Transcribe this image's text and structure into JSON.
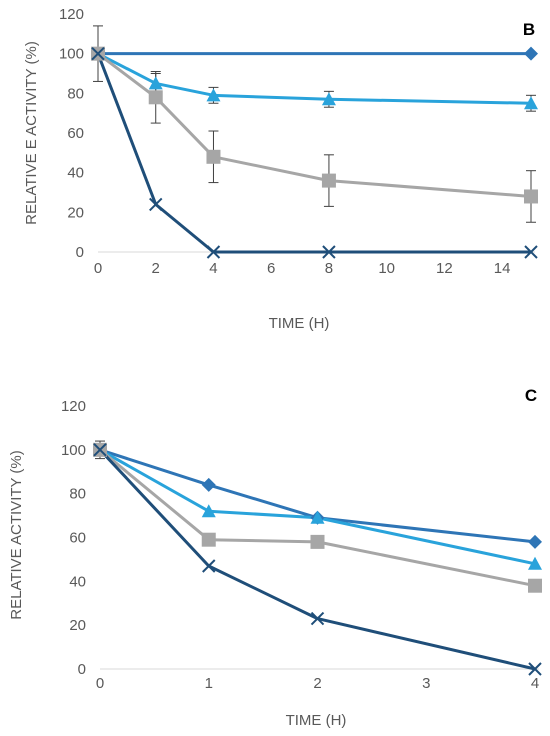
{
  "chart_data": [
    {
      "type": "line",
      "panel_label": "B",
      "xlabel": "TIME (H)",
      "ylabel": "RELATIVE E ACTIVITY (%)",
      "xlim": [
        0,
        15
      ],
      "ylim": [
        0,
        120
      ],
      "x_ticks": [
        0,
        2,
        4,
        6,
        8,
        10,
        12,
        14
      ],
      "y_ticks": [
        0,
        20,
        40,
        60,
        80,
        100,
        120
      ],
      "grid": false,
      "series": [
        {
          "marker": "diamond",
          "color": "#2E75B6",
          "x": [
            0,
            15
          ],
          "y": [
            100,
            100
          ],
          "errors": [
            0,
            0
          ]
        },
        {
          "marker": "triangle",
          "color": "#29A3DB",
          "x": [
            0,
            2,
            4,
            8,
            15
          ],
          "y": [
            100,
            85,
            79,
            77,
            75
          ],
          "errors": [
            0,
            5,
            4,
            4,
            4
          ]
        },
        {
          "marker": "square",
          "color": "#A6A6A6",
          "x": [
            0,
            2,
            4,
            8,
            15
          ],
          "y": [
            100,
            78,
            48,
            36,
            28
          ],
          "errors": [
            14,
            13,
            13,
            13,
            13
          ]
        },
        {
          "marker": "x",
          "color": "#1F4E79",
          "x": [
            0,
            2,
            4,
            8,
            15
          ],
          "y": [
            100,
            24,
            0,
            0,
            0
          ],
          "errors": [
            0,
            0,
            0,
            0,
            0
          ]
        }
      ]
    },
    {
      "type": "line",
      "panel_label": "C",
      "xlabel": "TIME (H)",
      "ylabel": "RELATIVE ACTIVITY (%)",
      "xlim": [
        0,
        4
      ],
      "ylim": [
        0,
        120
      ],
      "x_ticks": [
        0,
        1,
        2,
        3,
        4
      ],
      "y_ticks": [
        0,
        20,
        40,
        60,
        80,
        100,
        120
      ],
      "grid": false,
      "series": [
        {
          "marker": "diamond",
          "color": "#2E75B6",
          "x": [
            0,
            1,
            2,
            4
          ],
          "y": [
            100,
            84,
            69,
            58
          ],
          "errors": [
            4,
            0,
            0,
            0
          ]
        },
        {
          "marker": "triangle",
          "color": "#29A3DB",
          "x": [
            0,
            1,
            2,
            4
          ],
          "y": [
            100,
            72,
            69,
            48
          ],
          "errors": [
            0,
            0,
            0,
            0
          ]
        },
        {
          "marker": "square",
          "color": "#A6A6A6",
          "x": [
            0,
            1,
            2,
            4
          ],
          "y": [
            100,
            59,
            58,
            38
          ],
          "errors": [
            0,
            0,
            0,
            0
          ]
        },
        {
          "marker": "x",
          "color": "#1F4E79",
          "x": [
            0,
            1,
            2,
            4
          ],
          "y": [
            100,
            47,
            23,
            0
          ],
          "errors": [
            0,
            0,
            0,
            0
          ]
        }
      ]
    }
  ]
}
